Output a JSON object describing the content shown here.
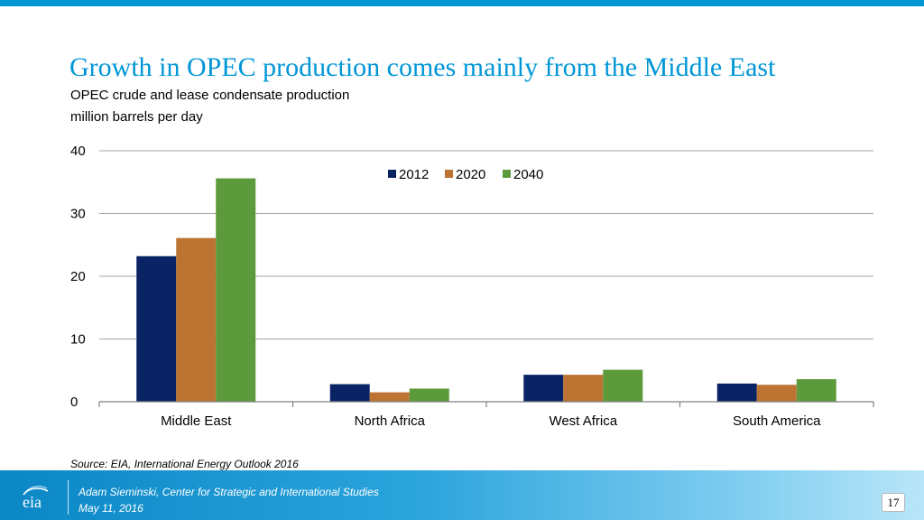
{
  "slide": {
    "title": "Growth in OPEC production comes mainly from the Middle East",
    "subtitle": "OPEC crude and lease condensate production",
    "units": "million barrels per day",
    "source": "Source:  EIA, International Energy Outlook 2016",
    "presenter": "Adam Sieminski, Center for Strategic and International Studies",
    "date": "May 11, 2016",
    "page_number": "17",
    "logo_text": "eia",
    "colors": {
      "accent": "#0096d6",
      "footer": "#0b87c6"
    }
  },
  "chart_data": {
    "type": "bar",
    "categories": [
      "Middle East",
      "North Africa",
      "West Africa",
      "South America"
    ],
    "series": [
      {
        "name": "2012",
        "color": "#0a2364",
        "values": [
          23.2,
          2.8,
          4.3,
          2.9
        ]
      },
      {
        "name": "2020",
        "color": "#bd7432",
        "values": [
          26.1,
          1.5,
          4.3,
          2.7
        ]
      },
      {
        "name": "2040",
        "color": "#5d9a3c",
        "values": [
          35.6,
          2.1,
          5.1,
          3.6
        ]
      }
    ],
    "title": "",
    "xlabel": "",
    "ylabel": "",
    "ylim": [
      0,
      40
    ],
    "yticks": [
      0,
      10,
      20,
      30,
      40
    ],
    "grid": true,
    "legend_position": "top-center"
  }
}
